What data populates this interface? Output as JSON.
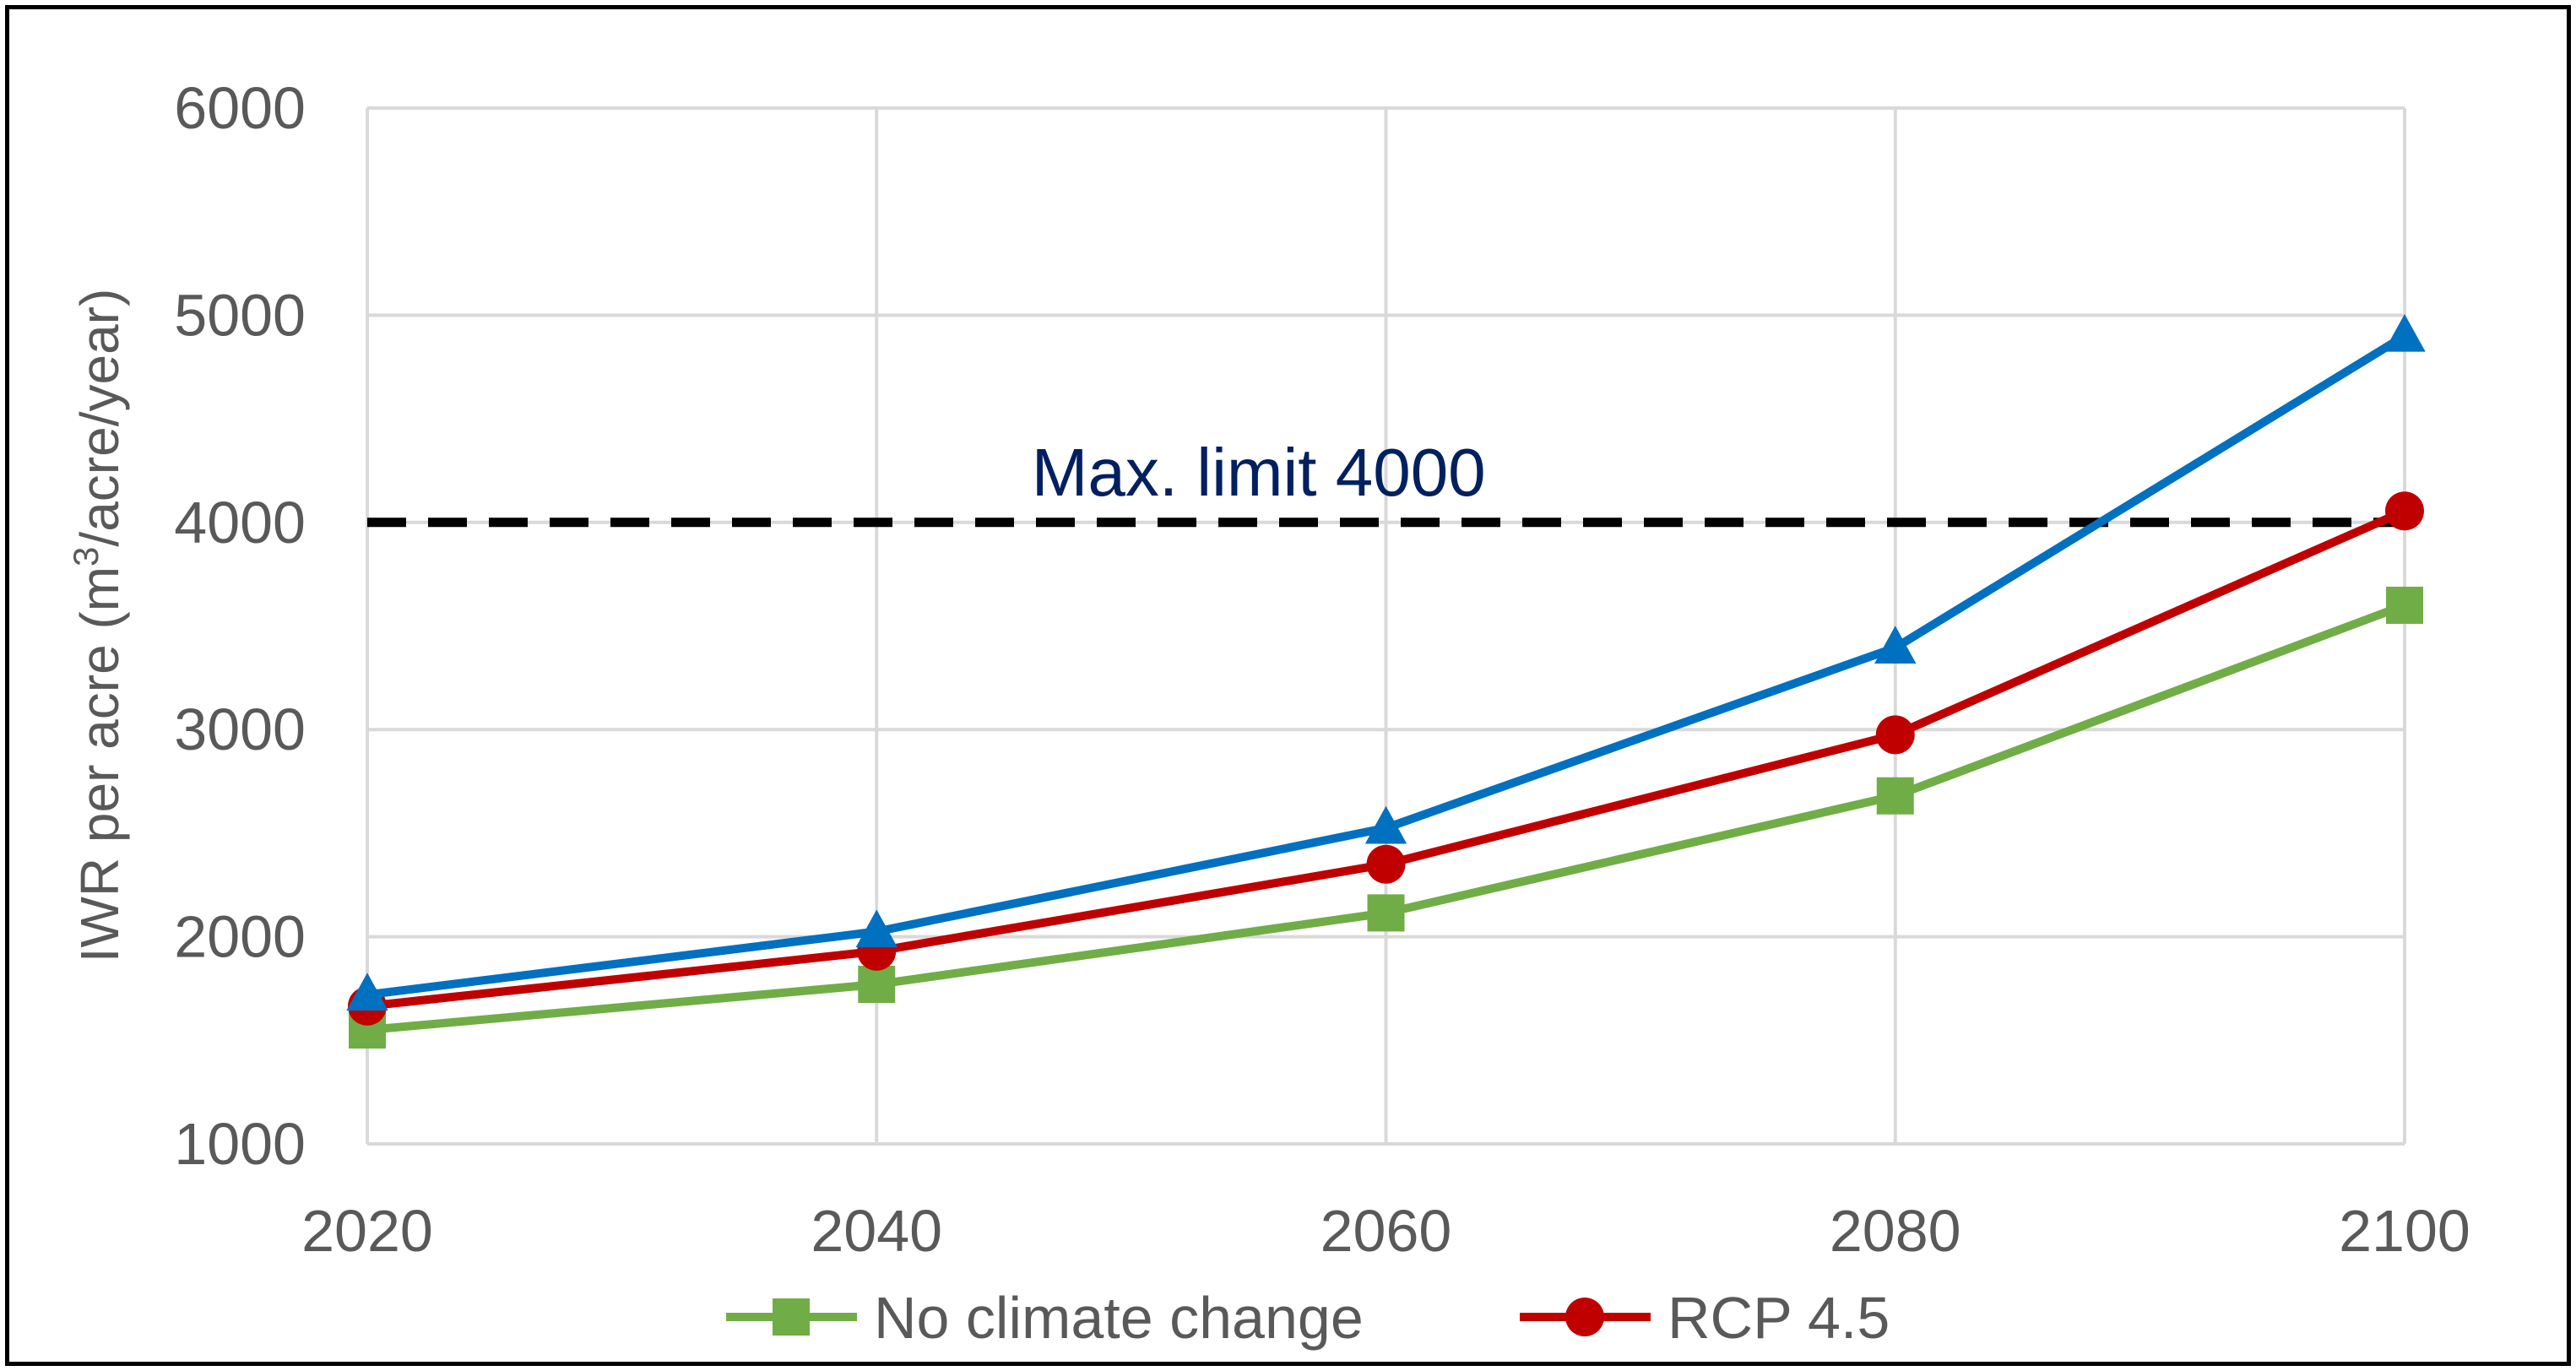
{
  "chart_data": {
    "type": "line",
    "title": "",
    "xlabel": "",
    "ylabel": "IWR per acre (m³/acre/year)",
    "ylabel_parts": {
      "before": "IWR per acre (m",
      "sup": "3",
      "after": "/acre/year)"
    },
    "x": [
      2020,
      2040,
      2060,
      2080,
      2100
    ],
    "x_tick_labels": [
      "2020",
      "2040",
      "2060",
      "2080",
      "2100"
    ],
    "ylim": [
      1000,
      6000
    ],
    "y_tick_labels": [
      "1000",
      "2000",
      "3000",
      "4000",
      "5000",
      "6000"
    ],
    "y_ticks": [
      1000,
      2000,
      3000,
      4000,
      5000,
      6000
    ],
    "grid": true,
    "legend_position": "bottom",
    "series": [
      {
        "name": "No climate change",
        "color": "#70ad47",
        "marker": "square",
        "values": [
          1550,
          1770,
          2115,
          2680,
          3600
        ]
      },
      {
        "name": "RCP 4.5",
        "color": "#c00000",
        "marker": "circle",
        "values": [
          1665,
          1930,
          2350,
          2975,
          4055
        ]
      },
      {
        "name": "",
        "color": "#0070c0",
        "marker": "triangle",
        "values": [
          1720,
          2025,
          2525,
          3395,
          4900
        ]
      }
    ],
    "reference_line": {
      "value": 4000,
      "label": "Max. limit 4000",
      "color": "#000000",
      "label_color": "#002060",
      "x_label_at": 2055
    }
  }
}
